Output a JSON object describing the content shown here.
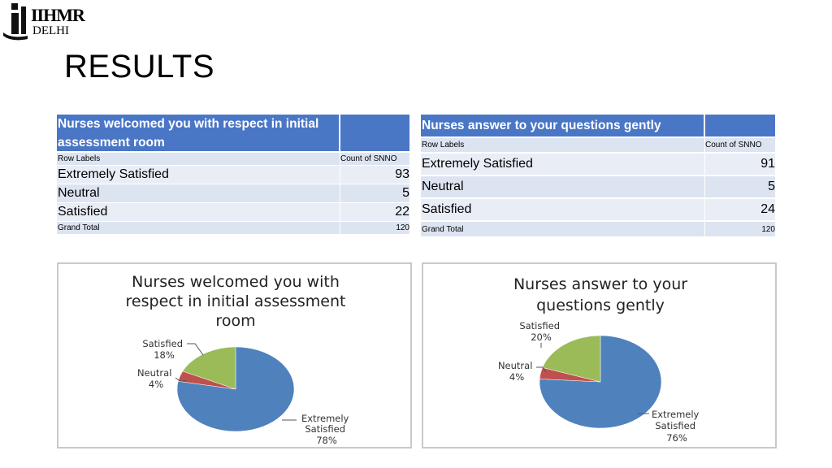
{
  "logo": {
    "line1": "IIHMR",
    "line2": "DELHI"
  },
  "title": "RESULTS",
  "table1": {
    "header": "Nurses welcomed you with respect in initial assessment room",
    "col_row_labels": "Row Labels",
    "col_count": "Count of SNNO",
    "rows": [
      {
        "label": "Extremely Satisfied",
        "value": "93"
      },
      {
        "label": "Neutral",
        "value": "5"
      },
      {
        "label": "Satisfied",
        "value": "22"
      }
    ],
    "total_label": "Grand Total",
    "total_value": "120"
  },
  "table2": {
    "header": "Nurses answer to your questions gently",
    "col_row_labels": "Row Labels",
    "col_count": "Count of SNNO",
    "rows": [
      {
        "label": "Extremely Satisfied",
        "value": "91"
      },
      {
        "label": "Neutral",
        "value": "5"
      },
      {
        "label": "Satisfied",
        "value": "24"
      }
    ],
    "total_label": "Grand Total",
    "total_value": "120"
  },
  "chart_data": [
    {
      "type": "pie",
      "title_lines": [
        "Nurses welcomed you with",
        "respect in initial assessment",
        "room"
      ],
      "slices": [
        {
          "name": "Extremely Satisfied",
          "value": 78,
          "label_lines": [
            "Extremely",
            "Satisfied",
            "78%"
          ],
          "color": "#4f81bd"
        },
        {
          "name": "Neutral",
          "value": 4,
          "label_lines": [
            "Neutral",
            "4%"
          ],
          "color": "#c0504d"
        },
        {
          "name": "Satisfied",
          "value": 18,
          "label_lines": [
            "Satisfied",
            "18%"
          ],
          "color": "#9bbb59"
        }
      ]
    },
    {
      "type": "pie",
      "title_lines": [
        "Nurses answer to your",
        "questions gently"
      ],
      "slices": [
        {
          "name": "Extremely Satisfied",
          "value": 76,
          "label_lines": [
            "Extremely",
            "Satisfied",
            "76%"
          ],
          "color": "#4f81bd"
        },
        {
          "name": "Neutral",
          "value": 4,
          "label_lines": [
            "Neutral",
            "4%"
          ],
          "color": "#c0504d"
        },
        {
          "name": "Satisfied",
          "value": 20,
          "label_lines": [
            "Satisfied",
            "20%"
          ],
          "color": "#9bbb59"
        }
      ]
    }
  ]
}
